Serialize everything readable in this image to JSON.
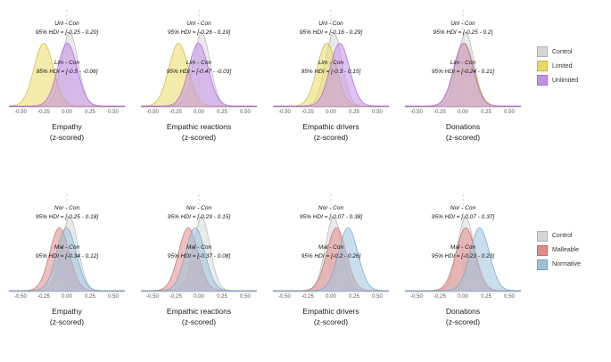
{
  "chart_data": {
    "type": "area",
    "description": "Posterior density distributions per condition with 95% HDI contrast annotations",
    "x_ticks": [
      "-0.50",
      "-0.25",
      "0.00",
      "0.25",
      "0.50"
    ],
    "x_range": [
      -0.625,
      0.625
    ],
    "grid": "minimal",
    "legend_position": "right",
    "rows": [
      {
        "legend": [
          {
            "label": "Control",
            "color": "#d6d6d6"
          },
          {
            "label": "Limited",
            "color": "#e9da62"
          },
          {
            "label": "Unlimited",
            "color": "#c28fe8"
          }
        ],
        "panels": [
          {
            "xlabel1": "Empathy",
            "xlabel2": "(z-scored)",
            "ann": [
              {
                "label": "Unl - Con",
                "hdi": "95% HDI = [-0.25 - 0.20]"
              },
              {
                "label": "Lim - Con",
                "hdi": "95% HDI = [-0.5 - -0.06]"
              }
            ],
            "densities": [
              {
                "name": "Control",
                "mean": 0.03,
                "sd": 0.09,
                "fill": "#d9d9d9",
                "color": "#b3b3b3"
              },
              {
                "name": "Limited",
                "mean": -0.25,
                "sd": 0.105,
                "fill": "#e9da62",
                "color": "#c9b837"
              },
              {
                "name": "Unlimited",
                "mean": 0.005,
                "sd": 0.105,
                "fill": "#c28fe8",
                "color": "#a75ddb"
              }
            ]
          },
          {
            "xlabel1": "Empathic reactions",
            "xlabel2": "(z-scored)",
            "ann": [
              {
                "label": "Unl - Con",
                "hdi": "95% HDI = [-0.26 - 0.19]"
              },
              {
                "label": "Lim - Con",
                "hdi": "95% HDI = [-0.47 - -0.03]"
              }
            ],
            "densities": [
              {
                "name": "Control",
                "mean": 0.03,
                "sd": 0.09,
                "fill": "#d9d9d9",
                "color": "#b3b3b3"
              },
              {
                "name": "Limited",
                "mean": -0.22,
                "sd": 0.105,
                "fill": "#e9da62",
                "color": "#c9b837"
              },
              {
                "name": "Unlimited",
                "mean": -0.005,
                "sd": 0.105,
                "fill": "#c28fe8",
                "color": "#a75ddb"
              }
            ]
          },
          {
            "xlabel1": "Empathic drivers",
            "xlabel2": "(z-scored)",
            "ann": [
              {
                "label": "Unl - Con",
                "hdi": "95% HDI = [-0.16 - 0.29]"
              },
              {
                "label": "Lim - Con",
                "hdi": "95% HDI = [-0.3 - 0.15]"
              }
            ],
            "densities": [
              {
                "name": "Control",
                "mean": 0.03,
                "sd": 0.09,
                "fill": "#d9d9d9",
                "color": "#b3b3b3"
              },
              {
                "name": "Limited",
                "mean": -0.045,
                "sd": 0.105,
                "fill": "#e9da62",
                "color": "#c9b837"
              },
              {
                "name": "Unlimited",
                "mean": 0.095,
                "sd": 0.105,
                "fill": "#c28fe8",
                "color": "#a75ddb"
              }
            ]
          },
          {
            "xlabel1": "Donations",
            "xlabel2": "(z-scored)",
            "ann": [
              {
                "label": "Unl - Con",
                "hdi": "95% HDI = [-0.25 - 0.2]"
              },
              {
                "label": "Lim - Con",
                "hdi": "95% HDI = [-0.24 - 0.21]"
              }
            ],
            "densities": [
              {
                "name": "Control",
                "mean": 0.03,
                "sd": 0.09,
                "fill": "#d9d9d9",
                "color": "#b3b3b3"
              },
              {
                "name": "Limited",
                "mean": 0.015,
                "sd": 0.105,
                "fill": "#e9da62",
                "color": "#c9b837"
              },
              {
                "name": "Unlimited",
                "mean": 0.005,
                "sd": 0.105,
                "fill": "#c28fe8",
                "color": "#a75ddb"
              }
            ]
          }
        ]
      },
      {
        "legend": [
          {
            "label": "Control",
            "color": "#d6d6d6"
          },
          {
            "label": "Malleable",
            "color": "#e08a8a"
          },
          {
            "label": "Normative",
            "color": "#9cc3de"
          }
        ],
        "panels": [
          {
            "xlabel1": "Empathy",
            "xlabel2": "(z-scored)",
            "ann": [
              {
                "label": "Nor - Con",
                "hdi": "95% HDI = [-0.25 - 0.18]"
              },
              {
                "label": "Mal - Con",
                "hdi": "95% HDI = [-0.34 - 0.12]"
              }
            ],
            "densities": [
              {
                "name": "Control",
                "mean": 0.03,
                "sd": 0.09,
                "fill": "#d9d9d9",
                "color": "#b3b3b3"
              },
              {
                "name": "Malleable",
                "mean": -0.08,
                "sd": 0.105,
                "fill": "#e08a8a",
                "color": "#c96a6a"
              },
              {
                "name": "Normative",
                "mean": -0.005,
                "sd": 0.105,
                "fill": "#9cc3de",
                "color": "#6fa6c9"
              }
            ]
          },
          {
            "xlabel1": "Empathic reactions",
            "xlabel2": "(z-scored)",
            "ann": [
              {
                "label": "Nor - Con",
                "hdi": "95% HDI = [-0.29 - 0.15]"
              },
              {
                "label": "Mal - Con",
                "hdi": "95% HDI = [-0.37 - 0.08]"
              }
            ],
            "densities": [
              {
                "name": "Control",
                "mean": 0.03,
                "sd": 0.09,
                "fill": "#d9d9d9",
                "color": "#b3b3b3"
              },
              {
                "name": "Malleable",
                "mean": -0.115,
                "sd": 0.105,
                "fill": "#e08a8a",
                "color": "#c96a6a"
              },
              {
                "name": "Normative",
                "mean": -0.04,
                "sd": 0.105,
                "fill": "#9cc3de",
                "color": "#6fa6c9"
              }
            ]
          },
          {
            "xlabel1": "Empathic drivers",
            "xlabel2": "(z-scored)",
            "ann": [
              {
                "label": "Nor - Con",
                "hdi": "95% HDI = [-0.07 - 0.38]"
              },
              {
                "label": "Mal - Con",
                "hdi": "95% HDI = [-0.2 - 0.26]"
              }
            ],
            "densities": [
              {
                "name": "Control",
                "mean": 0.03,
                "sd": 0.09,
                "fill": "#d9d9d9",
                "color": "#b3b3b3"
              },
              {
                "name": "Malleable",
                "mean": 0.06,
                "sd": 0.105,
                "fill": "#e08a8a",
                "color": "#c96a6a"
              },
              {
                "name": "Normative",
                "mean": 0.185,
                "sd": 0.105,
                "fill": "#9cc3de",
                "color": "#6fa6c9"
              }
            ]
          },
          {
            "xlabel1": "Donations",
            "xlabel2": "(z-scored)",
            "ann": [
              {
                "label": "Nor - Con",
                "hdi": "95% HDI = [-0.07 - 0.37]"
              },
              {
                "label": "Mal - Con",
                "hdi": "95% HDI = [-0.23 - 0.23]"
              }
            ],
            "densities": [
              {
                "name": "Control",
                "mean": 0.03,
                "sd": 0.09,
                "fill": "#d9d9d9",
                "color": "#b3b3b3"
              },
              {
                "name": "Malleable",
                "mean": 0.03,
                "sd": 0.105,
                "fill": "#e08a8a",
                "color": "#c96a6a"
              },
              {
                "name": "Normative",
                "mean": 0.18,
                "sd": 0.105,
                "fill": "#9cc3de",
                "color": "#6fa6c9"
              }
            ]
          }
        ]
      }
    ]
  }
}
